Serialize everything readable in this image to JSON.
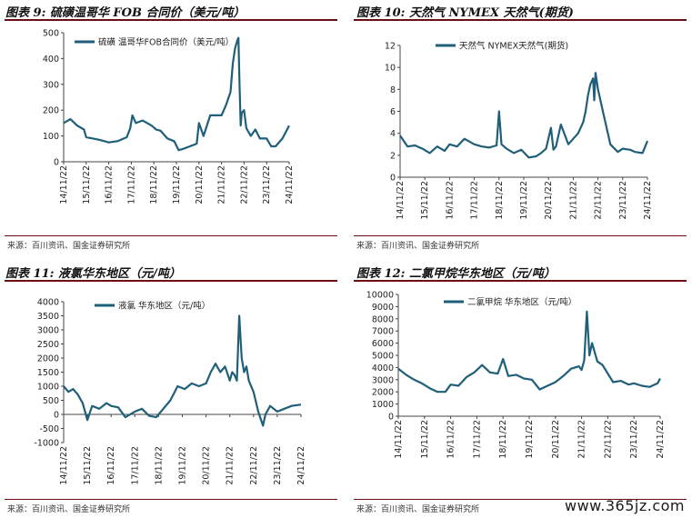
{
  "panels": [
    {
      "title": "图表 9: 硫磺温哥华 FOB 合同价（美元/吨）",
      "source": "来源：百川资讯、国金证券研究所"
    },
    {
      "title": "图表 10: 天然气 NYMEX 天然气(期货)",
      "source": "来源：百川资讯、国金证券研究所"
    },
    {
      "title": "图表 11: 液氯华东地区（元/吨）",
      "source": "来源：百川资讯、国金证券研究所"
    },
    {
      "title": "图表 12: 二氯甲烷华东地区（元/吨）",
      "source": "来源：百川资讯、国金证券研究所"
    }
  ],
  "watermark": "www.365jz.com",
  "colors": {
    "series": "#1f5f7a",
    "rule": "#6b0f12"
  },
  "chart_data": [
    {
      "type": "line",
      "xlabels": [
        "14/11/22",
        "15/11/22",
        "16/11/22",
        "17/11/22",
        "18/11/22",
        "19/11/22",
        "20/11/22",
        "21/11/22",
        "22/11/22",
        "23/11/22",
        "24/11/22"
      ],
      "ylim": [
        0,
        500
      ],
      "yticks": [
        0,
        100,
        200,
        300,
        400,
        500
      ],
      "series": [
        {
          "name": "硫磺 温哥华FOB合同价（美元/吨）",
          "x": [
            0,
            0.3,
            0.6,
            0.9,
            1.0,
            1.3,
            1.6,
            2.0,
            2.4,
            2.8,
            2.95,
            3.05,
            3.2,
            3.5,
            3.9,
            4.1,
            4.3,
            4.6,
            4.9,
            5.1,
            5.3,
            5.6,
            5.9,
            6.0,
            6.2,
            6.5,
            6.8,
            7.0,
            7.2,
            7.4,
            7.5,
            7.6,
            7.7,
            7.75,
            7.8,
            7.85,
            7.9,
            8.0,
            8.1,
            8.3,
            8.5,
            8.7,
            9.0,
            9.2,
            9.4,
            9.7,
            10.0
          ],
          "y": [
            150,
            165,
            140,
            125,
            95,
            90,
            85,
            75,
            80,
            95,
            130,
            180,
            150,
            160,
            140,
            125,
            120,
            90,
            80,
            45,
            50,
            60,
            70,
            150,
            100,
            180,
            180,
            180,
            220,
            270,
            380,
            440,
            470,
            480,
            300,
            140,
            190,
            200,
            130,
            100,
            125,
            90,
            90,
            60,
            60,
            90,
            140
          ]
        }
      ]
    },
    {
      "type": "line",
      "xlabels": [
        "14/11/22",
        "15/11/22",
        "16/11/22",
        "17/11/22",
        "18/11/22",
        "19/11/22",
        "20/11/22",
        "21/11/22",
        "22/11/22",
        "23/11/22",
        "24/11/22"
      ],
      "ylim": [
        0,
        12
      ],
      "yticks": [
        0,
        2,
        4,
        6,
        8,
        10,
        12
      ],
      "series": [
        {
          "name": "天然气 NYMEX天然气(期货)",
          "x": [
            0,
            0.3,
            0.6,
            0.9,
            1.2,
            1.5,
            1.8,
            2.0,
            2.3,
            2.6,
            3.0,
            3.3,
            3.6,
            3.9,
            4.0,
            4.1,
            4.3,
            4.6,
            4.9,
            5.2,
            5.5,
            5.7,
            5.9,
            6.1,
            6.2,
            6.3,
            6.5,
            6.8,
            7.0,
            7.2,
            7.4,
            7.5,
            7.6,
            7.7,
            7.8,
            7.85,
            7.9,
            8.0,
            8.2,
            8.5,
            8.8,
            9.0,
            9.3,
            9.5,
            9.8,
            10.0
          ],
          "y": [
            3.8,
            2.8,
            2.9,
            2.6,
            2.2,
            2.8,
            2.4,
            3.0,
            2.8,
            3.5,
            3.0,
            2.8,
            2.7,
            2.9,
            6.0,
            3.0,
            2.6,
            2.2,
            2.5,
            1.8,
            1.9,
            2.2,
            2.6,
            4.5,
            2.5,
            2.8,
            4.8,
            3.0,
            3.5,
            4.0,
            5.0,
            6.0,
            7.5,
            8.5,
            9.0,
            7.0,
            9.5,
            8.0,
            6.0,
            3.0,
            2.3,
            2.6,
            2.5,
            2.3,
            2.2,
            3.3
          ]
        }
      ]
    },
    {
      "type": "line",
      "xlabels": [
        "14/11/22",
        "15/11/22",
        "16/11/22",
        "17/11/22",
        "18/11/22",
        "19/11/22",
        "20/11/22",
        "21/11/22",
        "22/11/22",
        "23/11/22",
        "24/11/22"
      ],
      "ylim": [
        -1000,
        4000
      ],
      "yticks": [
        -1000,
        -500,
        0,
        500,
        1000,
        1500,
        2000,
        2500,
        3000,
        3500,
        4000
      ],
      "series": [
        {
          "name": "液氯 华东地区（元/吨）",
          "x": [
            0,
            0.2,
            0.4,
            0.6,
            0.8,
            1.0,
            1.2,
            1.5,
            1.8,
            2.0,
            2.3,
            2.6,
            3.0,
            3.3,
            3.6,
            3.9,
            4.2,
            4.5,
            4.8,
            5.1,
            5.4,
            5.7,
            6.0,
            6.2,
            6.4,
            6.6,
            6.8,
            7.0,
            7.1,
            7.2,
            7.3,
            7.4,
            7.5,
            7.6,
            7.7,
            7.8,
            8.0,
            8.2,
            8.4,
            8.5,
            8.7,
            9.0,
            9.3,
            9.6,
            10.0
          ],
          "y": [
            1000,
            800,
            900,
            700,
            400,
            -200,
            300,
            200,
            400,
            300,
            250,
            -100,
            100,
            200,
            -50,
            -100,
            200,
            500,
            1000,
            900,
            1100,
            1000,
            1100,
            1500,
            1800,
            1500,
            1700,
            1200,
            1500,
            1400,
            1200,
            3500,
            2000,
            1500,
            1700,
            1200,
            800,
            100,
            -400,
            0,
            300,
            100,
            200,
            300,
            350
          ]
        }
      ]
    },
    {
      "type": "line",
      "xlabels": [
        "14/11/22",
        "15/11/22",
        "16/11/22",
        "17/11/22",
        "18/11/22",
        "19/11/22",
        "20/11/22",
        "21/11/22",
        "22/11/22",
        "23/11/22",
        "24/11/22"
      ],
      "ylim": [
        0,
        10000
      ],
      "yticks": [
        0,
        1000,
        2000,
        3000,
        4000,
        5000,
        6000,
        7000,
        8000,
        9000,
        10000
      ],
      "series": [
        {
          "name": "二氯甲烷 华东地区（元/吨）",
          "x": [
            0,
            0.3,
            0.6,
            0.9,
            1.2,
            1.5,
            1.8,
            2.0,
            2.3,
            2.6,
            2.9,
            3.2,
            3.5,
            3.8,
            4.0,
            4.2,
            4.5,
            4.8,
            5.1,
            5.4,
            5.7,
            6.0,
            6.3,
            6.6,
            6.9,
            7.0,
            7.1,
            7.2,
            7.3,
            7.4,
            7.6,
            7.8,
            8.0,
            8.2,
            8.5,
            8.8,
            9.0,
            9.3,
            9.6,
            9.9,
            10.0
          ],
          "y": [
            3900,
            3400,
            3000,
            2700,
            2300,
            2000,
            2000,
            2600,
            2500,
            3200,
            3600,
            4200,
            3600,
            3500,
            4700,
            3300,
            3400,
            3100,
            3000,
            2200,
            2500,
            2800,
            3300,
            3900,
            4100,
            3800,
            4600,
            8600,
            5000,
            6000,
            4500,
            4200,
            3500,
            2800,
            2900,
            2600,
            2700,
            2500,
            2400,
            2700,
            3100
          ]
        }
      ]
    }
  ]
}
